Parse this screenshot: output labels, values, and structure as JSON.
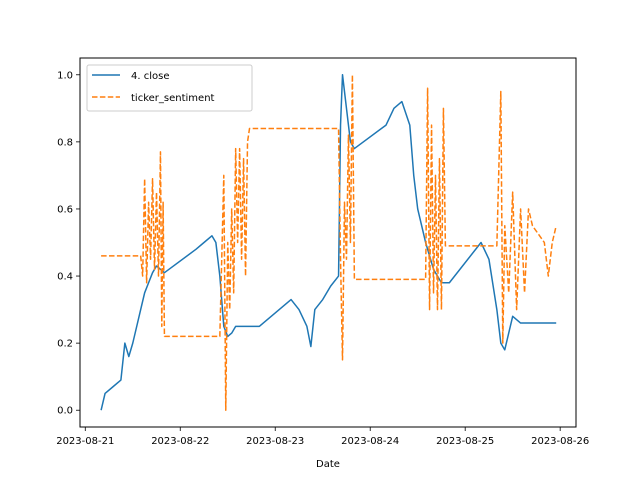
{
  "chart_data": {
    "type": "line",
    "title": "",
    "xlabel": "Date",
    "ylabel": "",
    "x_start": "2023-08-21T04:00",
    "x_end": "2023-08-25T23:00",
    "xlim": [
      "2023-08-20T22:40",
      "2023-08-26T04:00"
    ],
    "ylim": [
      -0.05,
      1.05
    ],
    "x_ticks": [
      "2023-08-21",
      "2023-08-22",
      "2023-08-23",
      "2023-08-24",
      "2023-08-25",
      "2023-08-26"
    ],
    "y_ticks": [
      0.0,
      0.2,
      0.4,
      0.6,
      0.8,
      1.0
    ],
    "y_tick_labels": [
      "0.0",
      "0.2",
      "0.4",
      "0.6",
      "0.8",
      "1.0"
    ],
    "legend_placement": "top-left",
    "grid": false,
    "series": [
      {
        "name": "4. close",
        "color": "#1f77b4",
        "style": "solid",
        "points": [
          [
            "2023-08-21T04:00",
            0.0
          ],
          [
            "2023-08-21T05:00",
            0.05
          ],
          [
            "2023-08-21T07:00",
            0.07
          ],
          [
            "2023-08-21T09:00",
            0.09
          ],
          [
            "2023-08-21T10:00",
            0.2
          ],
          [
            "2023-08-21T11:00",
            0.16
          ],
          [
            "2023-08-21T12:00",
            0.2
          ],
          [
            "2023-08-21T13:00",
            0.25
          ],
          [
            "2023-08-21T14:00",
            0.3
          ],
          [
            "2023-08-21T15:00",
            0.35
          ],
          [
            "2023-08-21T16:00",
            0.38
          ],
          [
            "2023-08-21T17:00",
            0.41
          ],
          [
            "2023-08-21T18:00",
            0.43
          ],
          [
            "2023-08-21T19:00",
            0.42
          ],
          [
            "2023-08-21T20:00",
            0.41
          ],
          [
            "2023-08-22T04:00",
            0.48
          ],
          [
            "2023-08-22T06:00",
            0.5
          ],
          [
            "2023-08-22T08:00",
            0.52
          ],
          [
            "2023-08-22T09:00",
            0.5
          ],
          [
            "2023-08-22T10:00",
            0.4
          ],
          [
            "2023-08-22T11:00",
            0.25
          ],
          [
            "2023-08-22T12:00",
            0.22
          ],
          [
            "2023-08-22T13:00",
            0.23
          ],
          [
            "2023-08-22T14:00",
            0.25
          ],
          [
            "2023-08-22T20:00",
            0.25
          ],
          [
            "2023-08-23T04:00",
            0.33
          ],
          [
            "2023-08-23T06:00",
            0.3
          ],
          [
            "2023-08-23T08:00",
            0.25
          ],
          [
            "2023-08-23T09:00",
            0.19
          ],
          [
            "2023-08-23T10:00",
            0.3
          ],
          [
            "2023-08-23T12:00",
            0.33
          ],
          [
            "2023-08-23T14:00",
            0.37
          ],
          [
            "2023-08-23T16:00",
            0.4
          ],
          [
            "2023-08-23T16:30",
            0.85
          ],
          [
            "2023-08-23T17:00",
            1.0
          ],
          [
            "2023-08-23T18:00",
            0.9
          ],
          [
            "2023-08-23T19:00",
            0.8
          ],
          [
            "2023-08-23T20:00",
            0.78
          ],
          [
            "2023-08-24T04:00",
            0.85
          ],
          [
            "2023-08-24T06:00",
            0.9
          ],
          [
            "2023-08-24T08:00",
            0.92
          ],
          [
            "2023-08-24T10:00",
            0.85
          ],
          [
            "2023-08-24T11:00",
            0.7
          ],
          [
            "2023-08-24T12:00",
            0.6
          ],
          [
            "2023-08-24T13:00",
            0.55
          ],
          [
            "2023-08-24T14:00",
            0.5
          ],
          [
            "2023-08-24T16:00",
            0.42
          ],
          [
            "2023-08-24T18:00",
            0.38
          ],
          [
            "2023-08-24T20:00",
            0.38
          ],
          [
            "2023-08-25T04:00",
            0.5
          ],
          [
            "2023-08-25T06:00",
            0.45
          ],
          [
            "2023-08-25T08:00",
            0.3
          ],
          [
            "2023-08-25T09:00",
            0.2
          ],
          [
            "2023-08-25T10:00",
            0.18
          ],
          [
            "2023-08-25T12:00",
            0.28
          ],
          [
            "2023-08-25T14:00",
            0.26
          ],
          [
            "2023-08-25T16:00",
            0.26
          ],
          [
            "2023-08-25T23:00",
            0.26
          ]
        ]
      },
      {
        "name": "ticker_sentiment",
        "color": "#ff7f0e",
        "style": "dashed",
        "points": [
          [
            "2023-08-21T04:00",
            0.46
          ],
          [
            "2023-08-21T14:00",
            0.46
          ],
          [
            "2023-08-21T14:30",
            0.4
          ],
          [
            "2023-08-21T15:00",
            0.69
          ],
          [
            "2023-08-21T15:30",
            0.38
          ],
          [
            "2023-08-21T16:00",
            0.62
          ],
          [
            "2023-08-21T16:30",
            0.45
          ],
          [
            "2023-08-21T17:00",
            0.69
          ],
          [
            "2023-08-21T17:30",
            0.42
          ],
          [
            "2023-08-21T18:00",
            0.65
          ],
          [
            "2023-08-21T18:30",
            0.4
          ],
          [
            "2023-08-21T19:00",
            0.77
          ],
          [
            "2023-08-21T19:20",
            0.25
          ],
          [
            "2023-08-21T19:40",
            0.62
          ],
          [
            "2023-08-21T20:00",
            0.22
          ],
          [
            "2023-08-22T04:00",
            0.22
          ],
          [
            "2023-08-22T10:00",
            0.22
          ],
          [
            "2023-08-22T11:00",
            0.7
          ],
          [
            "2023-08-22T11:30",
            0.0
          ],
          [
            "2023-08-22T12:00",
            0.5
          ],
          [
            "2023-08-22T12:30",
            0.3
          ],
          [
            "2023-08-22T13:00",
            0.6
          ],
          [
            "2023-08-22T13:30",
            0.35
          ],
          [
            "2023-08-22T14:00",
            0.78
          ],
          [
            "2023-08-22T14:30",
            0.5
          ],
          [
            "2023-08-22T15:00",
            0.78
          ],
          [
            "2023-08-22T15:30",
            0.45
          ],
          [
            "2023-08-22T16:00",
            0.75
          ],
          [
            "2023-08-22T16:30",
            0.4
          ],
          [
            "2023-08-22T17:00",
            0.8
          ],
          [
            "2023-08-22T17:30",
            0.84
          ],
          [
            "2023-08-23T16:00",
            0.84
          ],
          [
            "2023-08-23T16:30",
            0.45
          ],
          [
            "2023-08-23T17:00",
            0.15
          ],
          [
            "2023-08-23T17:30",
            0.62
          ],
          [
            "2023-08-23T18:00",
            0.45
          ],
          [
            "2023-08-23T18:30",
            0.82
          ],
          [
            "2023-08-23T19:00",
            0.5
          ],
          [
            "2023-08-23T19:30",
            1.0
          ],
          [
            "2023-08-23T20:00",
            0.39
          ],
          [
            "2023-08-24T04:00",
            0.39
          ],
          [
            "2023-08-24T08:00",
            0.39
          ],
          [
            "2023-08-24T12:00",
            0.39
          ],
          [
            "2023-08-24T14:00",
            0.39
          ],
          [
            "2023-08-24T14:30",
            0.96
          ],
          [
            "2023-08-24T15:00",
            0.3
          ],
          [
            "2023-08-24T15:30",
            0.85
          ],
          [
            "2023-08-24T16:00",
            0.35
          ],
          [
            "2023-08-24T16:30",
            0.7
          ],
          [
            "2023-08-24T17:00",
            0.3
          ],
          [
            "2023-08-24T17:30",
            0.75
          ],
          [
            "2023-08-24T18:00",
            0.3
          ],
          [
            "2023-08-24T18:30",
            0.9
          ],
          [
            "2023-08-24T19:00",
            0.49
          ],
          [
            "2023-08-25T04:00",
            0.49
          ],
          [
            "2023-08-25T08:00",
            0.49
          ],
          [
            "2023-08-25T09:00",
            0.95
          ],
          [
            "2023-08-25T09:30",
            0.2
          ],
          [
            "2023-08-25T10:00",
            0.55
          ],
          [
            "2023-08-25T11:00",
            0.35
          ],
          [
            "2023-08-25T12:00",
            0.65
          ],
          [
            "2023-08-25T13:00",
            0.3
          ],
          [
            "2023-08-25T14:00",
            0.6
          ],
          [
            "2023-08-25T15:00",
            0.35
          ],
          [
            "2023-08-25T16:00",
            0.6
          ],
          [
            "2023-08-25T17:00",
            0.55
          ],
          [
            "2023-08-25T20:00",
            0.5
          ],
          [
            "2023-08-25T21:00",
            0.4
          ],
          [
            "2023-08-25T22:00",
            0.5
          ],
          [
            "2023-08-25T23:00",
            0.55
          ]
        ]
      }
    ]
  }
}
